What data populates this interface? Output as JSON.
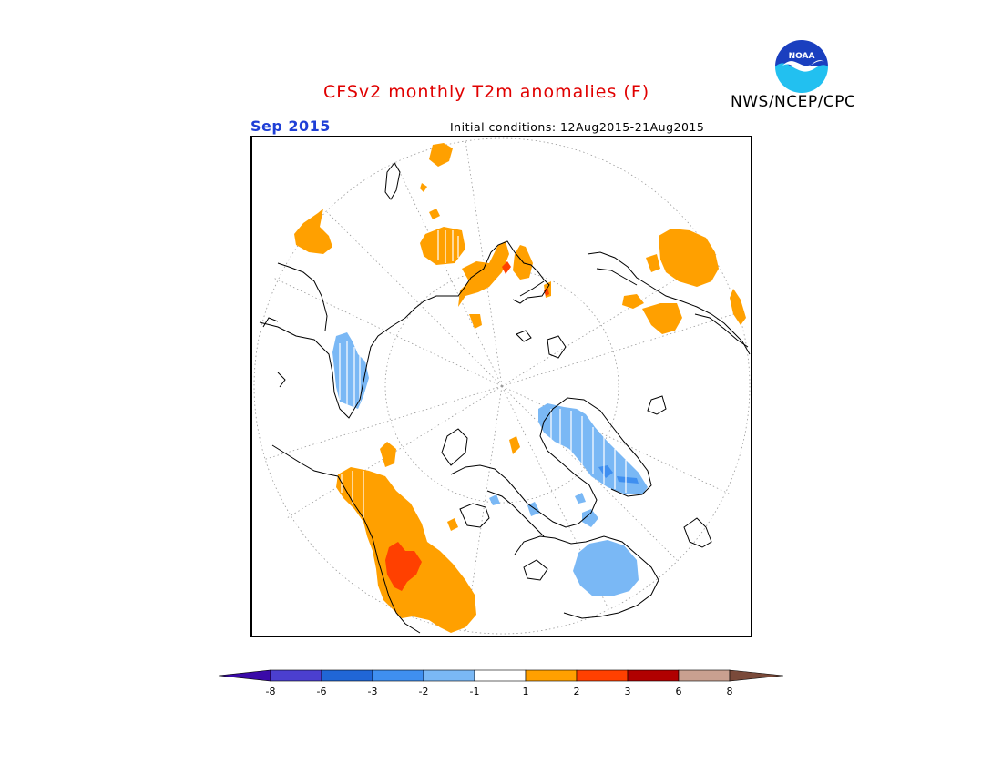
{
  "title": "CFSv2 monthly T2m anomalies (F)",
  "valid_month": "Sep 2015",
  "initial_conditions": "Initial conditions: 12Aug2015-21Aug2015",
  "agency": "NWS/NCEP/CPC",
  "logo_text": "NOAA",
  "legend": {
    "ticks": [
      "-8",
      "-6",
      "-3",
      "-2",
      "-1",
      "1",
      "2",
      "3",
      "6",
      "8"
    ],
    "colors": {
      "below_min": "#3a0aa8",
      "-8_to_-6": "#4b3fcf",
      "-6_to_-3": "#2066d6",
      "-3_to_-2": "#3f8ff0",
      "-2_to_-1": "#7ab8f5",
      "-1_to_1": "#ffffff",
      "1_to_2": "#ffa000",
      "2_to_3": "#ff4000",
      "3_to_6": "#b00000",
      "6_to_8": "#c9a090",
      "above_max": "#7a4a3a"
    }
  }
}
